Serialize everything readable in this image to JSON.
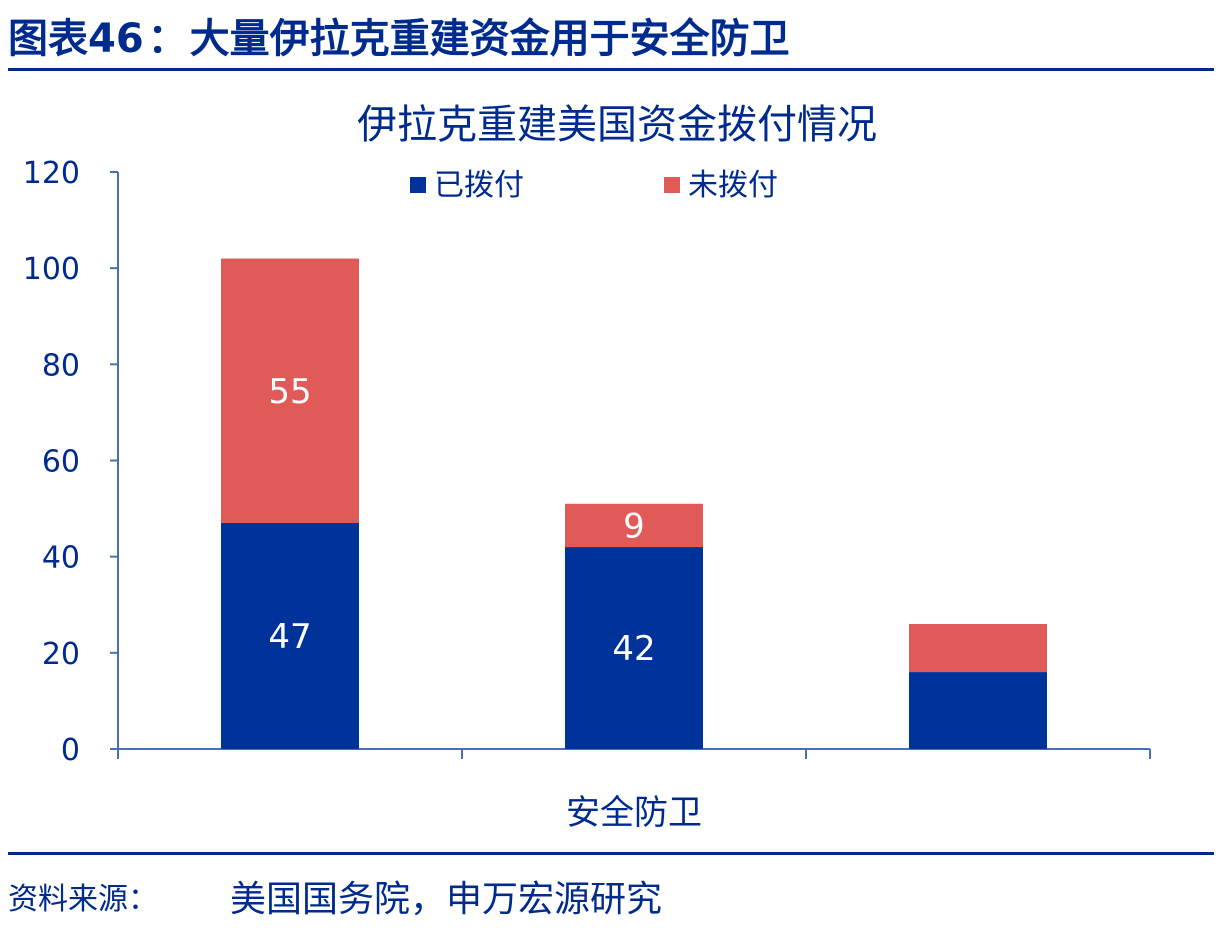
{
  "header": {
    "figure_prefix": "图表46",
    "separator": "：",
    "figure_title": "大量伊拉克重建资金用于安全防卫"
  },
  "footer": {
    "source_label": "资料来源：",
    "source_text": "美国国务院，申万宏源研究"
  },
  "colors": {
    "disbursed": "#003399",
    "undisbursed": "#E05A57",
    "text": "#002B8E",
    "axis": "#4A6FB5"
  },
  "chart_data": {
    "type": "bar",
    "stacked": true,
    "title": "伊拉克重建美国资金拨付情况",
    "xlabel": "安全防卫",
    "ylabel": "",
    "ylim": [
      0,
      120
    ],
    "yticks": [
      "0",
      "20",
      "40",
      "60",
      "80",
      "100",
      "120"
    ],
    "legend_position": "top",
    "categories": [
      "",
      "",
      ""
    ],
    "series": [
      {
        "name": "已拨付",
        "values": [
          47,
          42,
          16
        ],
        "labels": [
          "47",
          "42",
          ""
        ]
      },
      {
        "name": "未拨付",
        "values": [
          55,
          9,
          10
        ],
        "labels": [
          "55",
          "9",
          ""
        ]
      }
    ]
  }
}
